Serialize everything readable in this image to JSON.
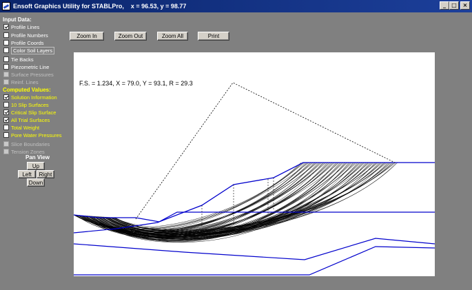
{
  "window": {
    "title": "Ensoft Graphics Utility for STABLPro,    x = 96.53, y = 98.77",
    "minimize_glyph": "_",
    "maximize_glyph": "□",
    "close_glyph": "×"
  },
  "sidebar": {
    "input_header": "Input Data:",
    "input_items": [
      {
        "label": "Profile Lines",
        "checked": true
      },
      {
        "label": "Profile Numbers",
        "checked": false
      },
      {
        "label": "Profile Coords",
        "checked": false
      },
      {
        "label": "Color Soil Layers",
        "checked": false
      },
      {
        "label": "Tie Backs",
        "checked": false
      },
      {
        "label": "Piezometric Line",
        "checked": false
      },
      {
        "label": "Surface Pressures",
        "checked": false
      },
      {
        "label": "Reinf. Lines",
        "checked": false
      }
    ],
    "computed_header": "Computed Values:",
    "computed_items": [
      {
        "label": "Solution Information",
        "checked": true
      },
      {
        "label": "10 Slip Surfaces",
        "checked": false
      },
      {
        "label": "Critical Slip Surface",
        "checked": true
      },
      {
        "label": "All Trial Surfaces",
        "checked": true
      },
      {
        "label": "Total Weight",
        "checked": false
      },
      {
        "label": "Pore Water Pressures",
        "checked": false
      }
    ],
    "other_items": [
      {
        "label": "Slice Boundaries",
        "checked": false
      },
      {
        "label": "Tension Zones",
        "checked": false
      }
    ],
    "pan_title": "Pan View",
    "pan_up": "Up",
    "pan_left": "Left",
    "pan_right": "Right",
    "pan_down": "Down"
  },
  "toolbar": {
    "zoom_in": "Zoom In",
    "zoom_out": "Zoom Out",
    "zoom_all": "Zoom All",
    "print": "Print"
  },
  "plot": {
    "solution_text": "F.S. = 1.234, X = 79.0, Y = 93.1, R = 29.3",
    "colors": {
      "profile": "#0000cc",
      "surfaces": "#000000",
      "background": "#ffffff"
    }
  }
}
